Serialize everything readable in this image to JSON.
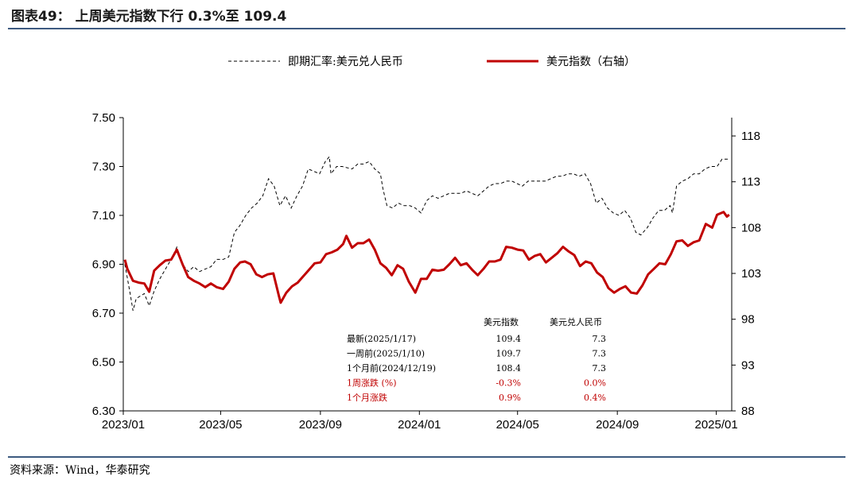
{
  "title": "图表49： 上周美元指数下行 0.3%至 109.4",
  "source": "资料来源：Wind，华泰研究",
  "colors": {
    "usdcny": "#000000",
    "dxy": "#c00000",
    "rule": "#3d5a80",
    "negative": "#c00000"
  },
  "chart_data": {
    "type": "line",
    "legend_position": "top",
    "grid": false,
    "x_ticks": [
      "2023/01",
      "2023/05",
      "2023/09",
      "2024/01",
      "2024/05",
      "2024/09",
      "2025/01"
    ],
    "x_range": [
      "2023-01-01",
      "2025-01-20"
    ],
    "y_left": {
      "range": [
        6.3,
        7.5
      ],
      "ticks": [
        "6.30",
        "6.50",
        "6.70",
        "6.90",
        "7.10",
        "7.30",
        "7.50"
      ]
    },
    "y_right": {
      "range": [
        88,
        120
      ],
      "ticks": [
        "88",
        "93",
        "98",
        "103",
        "108",
        "113",
        "118"
      ]
    },
    "series": [
      {
        "name": "即期汇率:美元兑人民币",
        "axis": "left",
        "style": "dashed",
        "points": [
          [
            "2023-01-03",
            6.9
          ],
          [
            "2023-01-10",
            6.77
          ],
          [
            "2023-01-13",
            6.71
          ],
          [
            "2023-01-17",
            6.76
          ],
          [
            "2023-01-27",
            6.78
          ],
          [
            "2023-02-02",
            6.73
          ],
          [
            "2023-02-08",
            6.79
          ],
          [
            "2023-02-15",
            6.84
          ],
          [
            "2023-02-22",
            6.88
          ],
          [
            "2023-03-01",
            6.92
          ],
          [
            "2023-03-08",
            6.97
          ],
          [
            "2023-03-15",
            6.9
          ],
          [
            "2023-03-22",
            6.87
          ],
          [
            "2023-03-29",
            6.89
          ],
          [
            "2023-04-05",
            6.87
          ],
          [
            "2023-04-12",
            6.88
          ],
          [
            "2023-04-19",
            6.89
          ],
          [
            "2023-04-26",
            6.92
          ],
          [
            "2023-05-04",
            6.92
          ],
          [
            "2023-05-11",
            6.93
          ],
          [
            "2023-05-18",
            7.03
          ],
          [
            "2023-05-25",
            7.06
          ],
          [
            "2023-06-01",
            7.1
          ],
          [
            "2023-06-08",
            7.13
          ],
          [
            "2023-06-15",
            7.15
          ],
          [
            "2023-06-22",
            7.18
          ],
          [
            "2023-06-29",
            7.25
          ],
          [
            "2023-07-06",
            7.22
          ],
          [
            "2023-07-13",
            7.14
          ],
          [
            "2023-07-20",
            7.18
          ],
          [
            "2023-07-27",
            7.13
          ],
          [
            "2023-08-03",
            7.18
          ],
          [
            "2023-08-10",
            7.22
          ],
          [
            "2023-08-17",
            7.29
          ],
          [
            "2023-08-24",
            7.28
          ],
          [
            "2023-08-31",
            7.27
          ],
          [
            "2023-09-07",
            7.32
          ],
          [
            "2023-09-12",
            7.34
          ],
          [
            "2023-09-14",
            7.27
          ],
          [
            "2023-09-21",
            7.3
          ],
          [
            "2023-09-28",
            7.3
          ],
          [
            "2023-10-10",
            7.29
          ],
          [
            "2023-10-17",
            7.31
          ],
          [
            "2023-10-24",
            7.31
          ],
          [
            "2023-10-31",
            7.32
          ],
          [
            "2023-11-07",
            7.29
          ],
          [
            "2023-11-14",
            7.27
          ],
          [
            "2023-11-17",
            7.21
          ],
          [
            "2023-11-22",
            7.14
          ],
          [
            "2023-11-29",
            7.13
          ],
          [
            "2023-12-06",
            7.15
          ],
          [
            "2023-12-13",
            7.14
          ],
          [
            "2023-12-20",
            7.14
          ],
          [
            "2023-12-27",
            7.13
          ],
          [
            "2024-01-03",
            7.11
          ],
          [
            "2024-01-10",
            7.16
          ],
          [
            "2024-01-17",
            7.18
          ],
          [
            "2024-01-24",
            7.17
          ],
          [
            "2024-01-31",
            7.18
          ],
          [
            "2024-02-07",
            7.19
          ],
          [
            "2024-02-21",
            7.19
          ],
          [
            "2024-02-28",
            7.2
          ],
          [
            "2024-03-06",
            7.19
          ],
          [
            "2024-03-13",
            7.18
          ],
          [
            "2024-03-20",
            7.2
          ],
          [
            "2024-03-27",
            7.22
          ],
          [
            "2024-04-03",
            7.23
          ],
          [
            "2024-04-10",
            7.23
          ],
          [
            "2024-04-17",
            7.24
          ],
          [
            "2024-04-24",
            7.24
          ],
          [
            "2024-05-07",
            7.22
          ],
          [
            "2024-05-14",
            7.24
          ],
          [
            "2024-05-21",
            7.24
          ],
          [
            "2024-05-28",
            7.24
          ],
          [
            "2024-06-04",
            7.24
          ],
          [
            "2024-06-11",
            7.25
          ],
          [
            "2024-06-18",
            7.26
          ],
          [
            "2024-06-25",
            7.26
          ],
          [
            "2024-07-02",
            7.27
          ],
          [
            "2024-07-09",
            7.27
          ],
          [
            "2024-07-16",
            7.26
          ],
          [
            "2024-07-23",
            7.27
          ],
          [
            "2024-07-30",
            7.23
          ],
          [
            "2024-08-06",
            7.15
          ],
          [
            "2024-08-13",
            7.17
          ],
          [
            "2024-08-20",
            7.13
          ],
          [
            "2024-08-27",
            7.11
          ],
          [
            "2024-09-03",
            7.1
          ],
          [
            "2024-09-10",
            7.12
          ],
          [
            "2024-09-17",
            7.09
          ],
          [
            "2024-09-24",
            7.03
          ],
          [
            "2024-09-30",
            7.02
          ],
          [
            "2024-10-08",
            7.05
          ],
          [
            "2024-10-15",
            7.09
          ],
          [
            "2024-10-22",
            7.12
          ],
          [
            "2024-10-29",
            7.12
          ],
          [
            "2024-11-05",
            7.14
          ],
          [
            "2024-11-08",
            7.11
          ],
          [
            "2024-11-13",
            7.22
          ],
          [
            "2024-11-20",
            7.24
          ],
          [
            "2024-11-27",
            7.25
          ],
          [
            "2024-12-04",
            7.27
          ],
          [
            "2024-12-11",
            7.27
          ],
          [
            "2024-12-18",
            7.29
          ],
          [
            "2024-12-25",
            7.3
          ],
          [
            "2025-01-02",
            7.3
          ],
          [
            "2025-01-08",
            7.33
          ],
          [
            "2025-01-17",
            7.33
          ]
        ]
      },
      {
        "name": "美元指数（右轴）",
        "axis": "right",
        "style": "solid",
        "points": [
          [
            "2023-01-03",
            104.5
          ],
          [
            "2023-01-06",
            103.5
          ],
          [
            "2023-01-13",
            102.2
          ],
          [
            "2023-01-20",
            102.0
          ],
          [
            "2023-01-27",
            101.9
          ],
          [
            "2023-02-02",
            101.0
          ],
          [
            "2023-02-08",
            103.3
          ],
          [
            "2023-02-15",
            103.9
          ],
          [
            "2023-02-22",
            104.4
          ],
          [
            "2023-03-01",
            104.5
          ],
          [
            "2023-03-08",
            105.6
          ],
          [
            "2023-03-15",
            104.0
          ],
          [
            "2023-03-22",
            102.6
          ],
          [
            "2023-03-29",
            102.2
          ],
          [
            "2023-04-05",
            101.9
          ],
          [
            "2023-04-12",
            101.5
          ],
          [
            "2023-04-19",
            101.9
          ],
          [
            "2023-04-26",
            101.5
          ],
          [
            "2023-05-04",
            101.3
          ],
          [
            "2023-05-11",
            102.1
          ],
          [
            "2023-05-18",
            103.5
          ],
          [
            "2023-05-25",
            104.2
          ],
          [
            "2023-05-31",
            104.3
          ],
          [
            "2023-06-07",
            104.0
          ],
          [
            "2023-06-14",
            102.9
          ],
          [
            "2023-06-21",
            102.6
          ],
          [
            "2023-06-28",
            102.9
          ],
          [
            "2023-07-05",
            103.0
          ],
          [
            "2023-07-12",
            100.5
          ],
          [
            "2023-07-14",
            99.8
          ],
          [
            "2023-07-21",
            100.9
          ],
          [
            "2023-07-28",
            101.6
          ],
          [
            "2023-08-04",
            102.0
          ],
          [
            "2023-08-11",
            102.7
          ],
          [
            "2023-08-18",
            103.4
          ],
          [
            "2023-08-25",
            104.1
          ],
          [
            "2023-09-01",
            104.2
          ],
          [
            "2023-09-08",
            105.1
          ],
          [
            "2023-09-15",
            105.3
          ],
          [
            "2023-09-22",
            105.6
          ],
          [
            "2023-09-29",
            106.2
          ],
          [
            "2023-10-03",
            107.1
          ],
          [
            "2023-10-10",
            105.8
          ],
          [
            "2023-10-17",
            106.3
          ],
          [
            "2023-10-24",
            106.3
          ],
          [
            "2023-10-31",
            106.7
          ],
          [
            "2023-11-07",
            105.6
          ],
          [
            "2023-11-14",
            104.1
          ],
          [
            "2023-11-21",
            103.6
          ],
          [
            "2023-11-28",
            102.8
          ],
          [
            "2023-12-05",
            103.9
          ],
          [
            "2023-12-12",
            103.5
          ],
          [
            "2023-12-19",
            102.1
          ],
          [
            "2023-12-27",
            100.9
          ],
          [
            "2024-01-03",
            102.4
          ],
          [
            "2024-01-10",
            102.4
          ],
          [
            "2024-01-17",
            103.4
          ],
          [
            "2024-01-24",
            103.3
          ],
          [
            "2024-01-31",
            103.4
          ],
          [
            "2024-02-07",
            104.0
          ],
          [
            "2024-02-14",
            104.7
          ],
          [
            "2024-02-21",
            103.9
          ],
          [
            "2024-02-28",
            104.1
          ],
          [
            "2024-03-06",
            103.4
          ],
          [
            "2024-03-13",
            102.8
          ],
          [
            "2024-03-20",
            103.5
          ],
          [
            "2024-03-27",
            104.3
          ],
          [
            "2024-04-03",
            104.3
          ],
          [
            "2024-04-10",
            104.5
          ],
          [
            "2024-04-17",
            105.9
          ],
          [
            "2024-04-24",
            105.8
          ],
          [
            "2024-05-01",
            105.6
          ],
          [
            "2024-05-08",
            105.5
          ],
          [
            "2024-05-15",
            104.5
          ],
          [
            "2024-05-22",
            104.9
          ],
          [
            "2024-05-29",
            105.1
          ],
          [
            "2024-06-05",
            104.2
          ],
          [
            "2024-06-12",
            104.7
          ],
          [
            "2024-06-19",
            105.2
          ],
          [
            "2024-06-26",
            105.9
          ],
          [
            "2024-07-03",
            105.4
          ],
          [
            "2024-07-10",
            105.0
          ],
          [
            "2024-07-17",
            103.8
          ],
          [
            "2024-07-24",
            104.3
          ],
          [
            "2024-07-31",
            104.1
          ],
          [
            "2024-08-07",
            103.1
          ],
          [
            "2024-08-14",
            102.6
          ],
          [
            "2024-08-21",
            101.4
          ],
          [
            "2024-08-28",
            100.9
          ],
          [
            "2024-09-04",
            101.3
          ],
          [
            "2024-09-11",
            101.6
          ],
          [
            "2024-09-18",
            100.9
          ],
          [
            "2024-09-25",
            100.8
          ],
          [
            "2024-10-02",
            101.7
          ],
          [
            "2024-10-09",
            102.9
          ],
          [
            "2024-10-16",
            103.5
          ],
          [
            "2024-10-23",
            104.1
          ],
          [
            "2024-10-30",
            104.0
          ],
          [
            "2024-11-06",
            105.1
          ],
          [
            "2024-11-13",
            106.5
          ],
          [
            "2024-11-20",
            106.6
          ],
          [
            "2024-11-27",
            106.0
          ],
          [
            "2024-12-04",
            106.4
          ],
          [
            "2024-12-11",
            106.6
          ],
          [
            "2024-12-19",
            108.4
          ],
          [
            "2024-12-27",
            108.0
          ],
          [
            "2025-01-02",
            109.4
          ],
          [
            "2025-01-10",
            109.7
          ],
          [
            "2025-01-14",
            109.2
          ],
          [
            "2025-01-17",
            109.4
          ]
        ]
      }
    ],
    "table": {
      "headers": [
        "",
        "美元指数",
        "美元兑人民币"
      ],
      "rows": [
        {
          "label": "最新(2025/1/17)",
          "dxy": "109.4",
          "cny": "7.3",
          "highlight": false
        },
        {
          "label": "一周前(2025/1/10)",
          "dxy": "109.7",
          "cny": "7.3",
          "highlight": false
        },
        {
          "label": "1个月前(2024/12/19)",
          "dxy": "108.4",
          "cny": "7.3",
          "highlight": false
        },
        {
          "label": "1周涨跌 (%)",
          "dxy": "-0.3%",
          "cny": "0.0%",
          "highlight": true
        },
        {
          "label": "1个月涨跌",
          "dxy": "0.9%",
          "cny": "0.4%",
          "highlight": true
        }
      ]
    }
  }
}
